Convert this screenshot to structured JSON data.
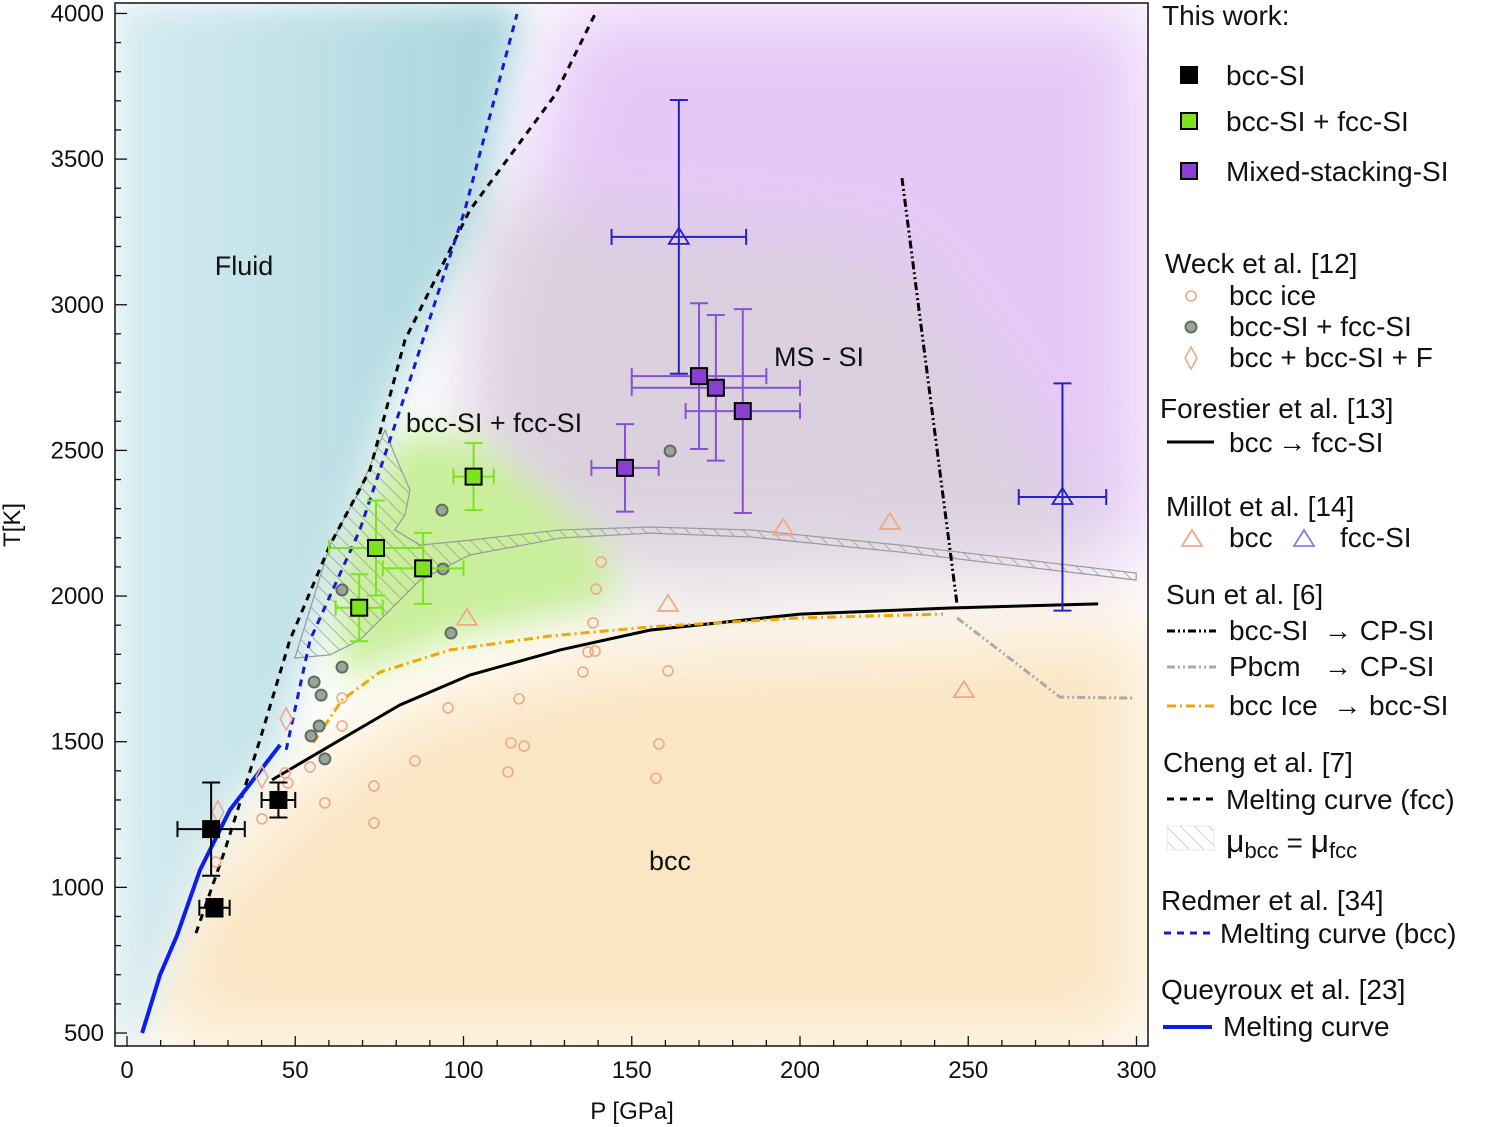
{
  "chart_data": {
    "type": "scatter",
    "xlabel": "P [GPa]",
    "ylabel": "T[K]",
    "xlim": [
      -3.5,
      303
    ],
    "ylim": [
      455,
      4040
    ],
    "xticks": [
      0,
      50,
      100,
      150,
      200,
      250,
      300
    ],
    "yticks": [
      500,
      1000,
      1500,
      2000,
      2500,
      3000,
      3500,
      4000
    ],
    "grid": false,
    "legend_placement": "right-outside",
    "region_labels": [
      "Fluid",
      "bcc-SI + fcc-SI",
      "MS - SI",
      "bcc"
    ],
    "region_colors": {
      "fluid": "#a9d6de",
      "ms_si": "#e6c8f8",
      "bcc_si_fcc_si": "#c9ef9c",
      "bcc": "#fbe6c4"
    },
    "legend": {
      "this_work": {
        "title": "This work:",
        "items": [
          "bcc-SI",
          "bcc-SI + fcc-SI",
          "Mixed-stacking-SI"
        ]
      },
      "weck": {
        "title": "Weck et al.  [12]",
        "items": [
          "bcc ice",
          "bcc-SI + fcc-SI",
          "bcc + bcc-SI + F"
        ]
      },
      "forestier": {
        "title": "Forestier et al. [13]",
        "items": [
          "bcc → fcc-SI"
        ]
      },
      "millot": {
        "title": "Millot et al.  [14]",
        "items": [
          "bcc",
          "fcc-SI"
        ]
      },
      "sun": {
        "title": "Sun et al. [6]",
        "items": [
          "bcc-SI  → CP-SI",
          "Pbcm   → CP-SI",
          "bcc Ice  → bcc-SI"
        ]
      },
      "cheng": {
        "title": "Cheng et al. [7]",
        "items": [
          "Melting curve (fcc)"
        ],
        "mu": "μ",
        "sub_bcc": "bcc",
        "eq": " = ",
        "sub_fcc": "fcc"
      },
      "redmer": {
        "title": "Redmer et al.  [34]",
        "items": [
          "Melting curve (bcc)"
        ]
      },
      "queyroux": {
        "title": "Queyroux et al.  [23]",
        "items": [
          "Melting curve"
        ]
      }
    },
    "series": [
      {
        "name": "bcc-SI",
        "group": "This work",
        "marker": "square",
        "color": "#000000",
        "points": [
          {
            "x": 25,
            "y": 1200,
            "xerr": 10,
            "yerr": 160
          },
          {
            "x": 26,
            "y": 930,
            "xerr": 4.5,
            "yerr": 30
          },
          {
            "x": 45,
            "y": 1300,
            "xerr": 5,
            "yerr": 60
          }
        ]
      },
      {
        "name": "bcc-SI + fcc-SI",
        "group": "This work",
        "marker": "square",
        "color": "#7ee21c",
        "points": [
          {
            "x": 69,
            "y": 1960,
            "xerr": 7,
            "yerr": 115
          },
          {
            "x": 74,
            "y": 2165,
            "xerr": 14,
            "yerr": 163
          },
          {
            "x": 88,
            "y": 2095,
            "xerr": 12,
            "yerr": 122
          },
          {
            "x": 103,
            "y": 2410,
            "xerr": 6,
            "yerr": 115
          }
        ]
      },
      {
        "name": "Mixed-stacking-SI",
        "group": "This work",
        "marker": "square",
        "color": "#8a3fd0",
        "points": [
          {
            "x": 148,
            "y": 2440,
            "xerr": 10,
            "yerr": 150
          },
          {
            "x": 170,
            "y": 2755,
            "xerr": 20,
            "yerr": 250
          },
          {
            "x": 175,
            "y": 2715,
            "xerr": 25,
            "yerr": 250
          },
          {
            "x": 183,
            "y": 2635,
            "xerr": 17,
            "yerr": 350
          }
        ]
      },
      {
        "name": "bcc ice",
        "group": "Weck et al. [12]",
        "marker": "circle-open",
        "color": "#f0a987",
        "points": [
          {
            "x": 140.9,
            "y": 2117
          },
          {
            "x": 139.4,
            "y": 2024
          },
          {
            "x": 138.5,
            "y": 1908
          },
          {
            "x": 137,
            "y": 1808
          },
          {
            "x": 139.1,
            "y": 1811
          },
          {
            "x": 135.5,
            "y": 1739
          },
          {
            "x": 160.8,
            "y": 1743
          },
          {
            "x": 116.5,
            "y": 1647
          },
          {
            "x": 95.4,
            "y": 1616
          },
          {
            "x": 63.9,
            "y": 1650
          },
          {
            "x": 63.9,
            "y": 1554
          },
          {
            "x": 114.1,
            "y": 1496
          },
          {
            "x": 118,
            "y": 1485
          },
          {
            "x": 158.1,
            "y": 1492
          },
          {
            "x": 85.6,
            "y": 1434
          },
          {
            "x": 54.4,
            "y": 1413
          },
          {
            "x": 113.2,
            "y": 1396
          },
          {
            "x": 157.2,
            "y": 1375
          },
          {
            "x": 73.4,
            "y": 1348
          },
          {
            "x": 47,
            "y": 1393
          },
          {
            "x": 47.8,
            "y": 1358
          },
          {
            "x": 58.8,
            "y": 1290
          },
          {
            "x": 73.4,
            "y": 1221
          },
          {
            "x": 40.1,
            "y": 1235
          },
          {
            "x": 26.4,
            "y": 1087
          }
        ]
      },
      {
        "name": "bcc-SI + fcc-SI",
        "group": "Weck et al. [12]",
        "marker": "circle-filled",
        "color": "#9aa59a",
        "points": [
          {
            "x": 93.6,
            "y": 2295
          },
          {
            "x": 93.9,
            "y": 2093
          },
          {
            "x": 63.9,
            "y": 2021
          },
          {
            "x": 96.3,
            "y": 1873
          },
          {
            "x": 63.9,
            "y": 1756
          },
          {
            "x": 55.6,
            "y": 1705
          },
          {
            "x": 57.7,
            "y": 1660
          },
          {
            "x": 57.1,
            "y": 1554
          },
          {
            "x": 54.7,
            "y": 1520
          },
          {
            "x": 58.8,
            "y": 1441
          },
          {
            "x": 161.4,
            "y": 2498
          }
        ]
      },
      {
        "name": "bcc + bcc-SI + F",
        "group": "Weck et al. [12]",
        "marker": "diamond-open",
        "color": "#f0a987",
        "points": [
          {
            "x": 47.3,
            "y": 1578
          },
          {
            "x": 40.1,
            "y": 1379
          },
          {
            "x": 27,
            "y": 1259
          }
        ]
      },
      {
        "name": "bcc",
        "group": "Millot et al. [14]",
        "marker": "triangle-open",
        "color": "#f0a987",
        "points": [
          {
            "x": 195,
            "y": 2234
          },
          {
            "x": 226.7,
            "y": 2254
          },
          {
            "x": 160.8,
            "y": 1973
          },
          {
            "x": 101,
            "y": 1925
          },
          {
            "x": 248.7,
            "y": 1677
          }
        ]
      },
      {
        "name": "fcc-SI",
        "group": "Millot et al. [14]",
        "marker": "triangle-open",
        "color": "#2323c8",
        "points": [
          {
            "x": 164,
            "y": 3233,
            "xerr": 20,
            "yerr": 470
          },
          {
            "x": 278,
            "y": 2340,
            "xerr": 13,
            "yerr": 390
          }
        ]
      }
    ],
    "curves": [
      {
        "name": "bcc → fcc-SI",
        "group": "Forestier et al. [13]",
        "style": "solid",
        "color": "#000000",
        "points": [
          [
            43.1,
            1369
          ],
          [
            63.3,
            1506
          ],
          [
            81.1,
            1626
          ],
          [
            101.9,
            1729
          ],
          [
            128.7,
            1815
          ],
          [
            155.4,
            1883
          ],
          [
            200,
            1938
          ],
          [
            244.6,
            1959
          ],
          [
            288.6,
            1973
          ]
        ]
      },
      {
        "name": "bcc-SI → CP-SI",
        "group": "Sun et al. [6]",
        "style": "dashdotdot",
        "color": "#000000",
        "points": [
          [
            230.3,
            3435
          ],
          [
            246.7,
            1969
          ]
        ]
      },
      {
        "name": "Pbcm → CP-SI",
        "group": "Sun et al. [6]",
        "style": "dashdotdot",
        "color": "#aaaaaa",
        "points": [
          [
            246.7,
            1925
          ],
          [
            277.3,
            1653
          ],
          [
            298.7,
            1650
          ]
        ]
      },
      {
        "name": "bcc Ice → bcc-SI",
        "group": "Sun et al. [6]",
        "style": "dashdot",
        "color": "#f0a800",
        "points": [
          [
            55.3,
            1496
          ],
          [
            63.9,
            1643
          ],
          [
            75.2,
            1739
          ],
          [
            96,
            1815
          ],
          [
            125.7,
            1863
          ],
          [
            155.4,
            1894
          ],
          [
            200,
            1925
          ],
          [
            242.5,
            1938
          ]
        ]
      },
      {
        "name": "Melting curve (fcc)",
        "group": "Cheng et al. [7]",
        "style": "dashed",
        "color": "#000000",
        "points": [
          [
            20.5,
            843
          ],
          [
            29.1,
            1128
          ],
          [
            39.5,
            1506
          ],
          [
            48.4,
            1849
          ],
          [
            60.3,
            2175
          ],
          [
            72.2,
            2433
          ],
          [
            82.6,
            2879
          ],
          [
            101.9,
            3325
          ],
          [
            127.2,
            3720
          ],
          [
            139.1,
            3998
          ]
        ]
      },
      {
        "name": "Melting curve (bcc)",
        "group": "Redmer et al. [34]",
        "style": "dashed",
        "color": "#1a1ad0",
        "points": [
          [
            47.3,
            1472
          ],
          [
            54.4,
            1849
          ],
          [
            69.2,
            2227
          ],
          [
            84.1,
            2742
          ],
          [
            100.4,
            3325
          ],
          [
            115.9,
            3998
          ]
        ]
      },
      {
        "name": "Melting curve",
        "group": "Queyroux et al. [23]",
        "style": "solid",
        "color": "#0a1ef0",
        "points": [
          [
            4.5,
            500
          ],
          [
            9.8,
            699
          ],
          [
            14.9,
            836
          ],
          [
            21.7,
            1060
          ],
          [
            30.6,
            1266
          ],
          [
            45.5,
            1489
          ]
        ]
      }
    ],
    "hatched_region": {
      "name": "μbcc = μfcc",
      "group": "Cheng et al. [7]",
      "points": [
        [
          49.9,
          1787
        ],
        [
          60.3,
          2175
        ],
        [
          69.2,
          2364
        ],
        [
          76.7,
          2570
        ],
        [
          79.6,
          2484
        ],
        [
          84.1,
          2364
        ],
        [
          82.6,
          2278
        ],
        [
          79.6,
          2227
        ],
        [
          87.1,
          2175
        ],
        [
          101.9,
          2192
        ],
        [
          128.7,
          2227
        ],
        [
          155.4,
          2237
        ],
        [
          185.1,
          2227
        ],
        [
          229.7,
          2175
        ],
        [
          299.9,
          2079
        ],
        [
          299.9,
          2055
        ],
        [
          229.7,
          2151
        ],
        [
          185.1,
          2203
        ],
        [
          155.4,
          2216
        ],
        [
          128.7,
          2199
        ],
        [
          101.9,
          2141
        ],
        [
          87.1,
          2055
        ],
        [
          69.2,
          1849
        ],
        [
          60.3,
          1798
        ]
      ]
    }
  }
}
